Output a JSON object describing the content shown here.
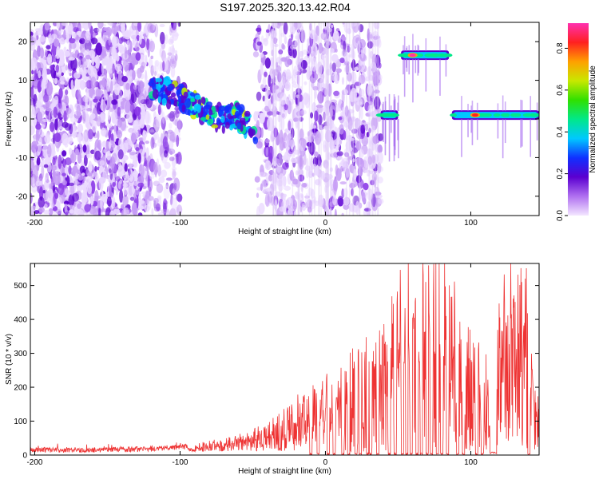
{
  "title": "S197.2025.320.13.42.R04",
  "chart_data": [
    {
      "type": "heatmap",
      "name": "spectrogram",
      "xlabel": "Height of straight line (km)",
      "ylabel": "Frequency (Hz)",
      "xlim": [
        -203,
        147
      ],
      "ylim": [
        -25,
        25
      ],
      "xticks": [
        -200,
        -100,
        0,
        100
      ],
      "yticks": [
        -20,
        -10,
        0,
        10,
        20
      ],
      "colorbar": {
        "label": "Normalized spectral amplitude",
        "range": [
          0.0,
          0.92
        ],
        "ticks": [
          0.0,
          0.2,
          0.4,
          0.6,
          0.8
        ],
        "tick_labels": [
          "0.0",
          "0.2",
          "0.4",
          "0.6",
          "0.8"
        ],
        "colors": [
          "#f3e6ff",
          "#b070f0",
          "#5b00d0",
          "#1030ff",
          "#00c8ff",
          "#00e88a",
          "#30e000",
          "#c8e800",
          "#ffa000",
          "#ff2020",
          "#ff30b0"
        ]
      },
      "features": [
        {
          "label": "noise region",
          "x_range": [
            -203,
            -122
          ],
          "freq_range": [
            -25,
            25
          ],
          "amplitude": 0.1
        },
        {
          "label": "drifting signal",
          "x": [
            -120,
            -100,
            -88,
            -78,
            -70,
            -62,
            -55,
            -48
          ],
          "freq": [
            8,
            6,
            3,
            1,
            0,
            1,
            -1,
            -3
          ],
          "amplitude": 0.35
        },
        {
          "label": "carrier band 1",
          "x_range": [
            38,
            50
          ],
          "freq": 1,
          "amplitude": 0.45
        },
        {
          "label": "carrier band 2",
          "x_range": [
            52,
            85
          ],
          "freq": 16.5,
          "amplitude": 0.55,
          "peak_x": 60,
          "peak_amplitude": 0.9
        },
        {
          "label": "carrier band 3",
          "x_range": [
            87,
            147
          ],
          "freq": 1,
          "amplitude": 0.45,
          "peak_x": 103,
          "peak_amplitude": 0.8
        }
      ]
    },
    {
      "type": "line",
      "name": "snr",
      "xlabel": "Height of straight line (km)",
      "ylabel": "SNR (10 * v/v)",
      "xlim": [
        -203,
        147
      ],
      "ylim": [
        0,
        565
      ],
      "xticks": [
        -200,
        -100,
        0,
        100
      ],
      "yticks": [
        0,
        100,
        200,
        300,
        400,
        500
      ],
      "color": "#ee3333",
      "envelope": {
        "x": [
          -203,
          -160,
          -120,
          -100,
          -90,
          -80,
          -70,
          -60,
          -50,
          -40,
          -30,
          -20,
          -10,
          0,
          10,
          20,
          30,
          40,
          50,
          55,
          60,
          70,
          80,
          85,
          90,
          100,
          110,
          115,
          120,
          130,
          140,
          143,
          147
        ],
        "y0": [
          12,
          12,
          15,
          20,
          25,
          35,
          40,
          50,
          60,
          90,
          110,
          140,
          170,
          190,
          230,
          260,
          300,
          320,
          430,
          480,
          470,
          480,
          500,
          520,
          390,
          300,
          260,
          250,
          420,
          470,
          480,
          200,
          170
        ]
      },
      "dropouts_x": [
        -10,
        -5,
        2,
        6,
        12,
        16,
        21,
        24,
        29,
        31,
        36,
        44,
        48,
        53,
        56,
        59,
        63,
        66,
        70,
        73,
        77,
        80,
        84,
        91,
        95,
        104,
        108,
        114,
        140
      ]
    }
  ]
}
